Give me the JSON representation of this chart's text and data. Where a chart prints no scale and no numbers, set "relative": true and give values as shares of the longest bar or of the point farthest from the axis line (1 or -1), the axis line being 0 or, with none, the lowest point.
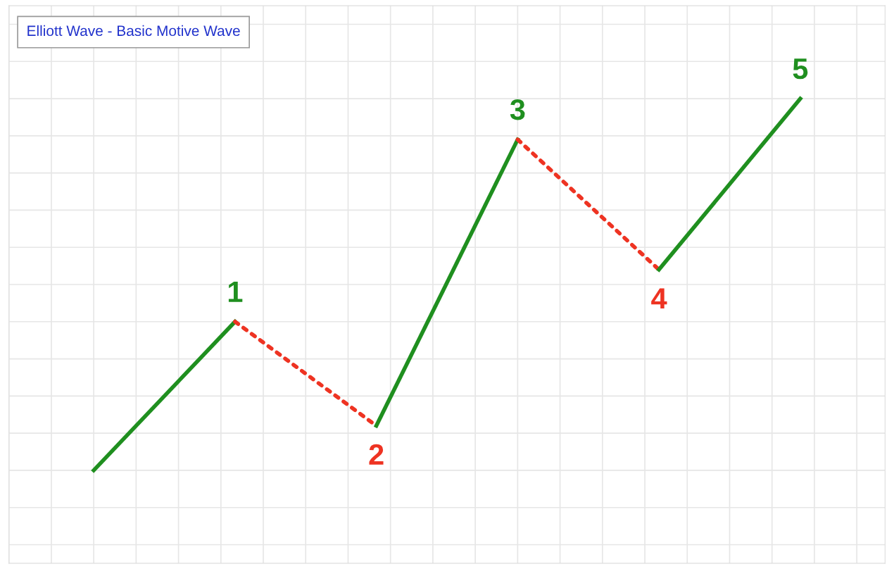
{
  "chart_data": {
    "type": "line",
    "title": "Elliott Wave - Basic Motive Wave",
    "relative": true,
    "grid": true,
    "line_style": "solid",
    "marker": "none",
    "categories": [
      null,
      null,
      null,
      null,
      null,
      null
    ],
    "annotations": [
      "1",
      "2",
      "3",
      "4",
      "5"
    ],
    "series": [
      {
        "color": "#1f8f1f",
        "values": [
          0,
          0.4,
          null,
          null,
          null,
          null
        ]
      },
      {
        "color": "#ee3322",
        "line_style": "dotted",
        "values": [
          null,
          0.4,
          0.12,
          null,
          null,
          null
        ]
      },
      {
        "color": "#1f8f1f",
        "values": [
          null,
          null,
          0.12,
          0.89,
          null,
          null
        ]
      },
      {
        "color": "#ee3322",
        "line_style": "dotted",
        "values": [
          null,
          null,
          null,
          0.89,
          0.54,
          null
        ]
      },
      {
        "color": "#1f8f1f",
        "values": [
          null,
          null,
          null,
          null,
          0.54,
          1
        ]
      }
    ]
  }
}
